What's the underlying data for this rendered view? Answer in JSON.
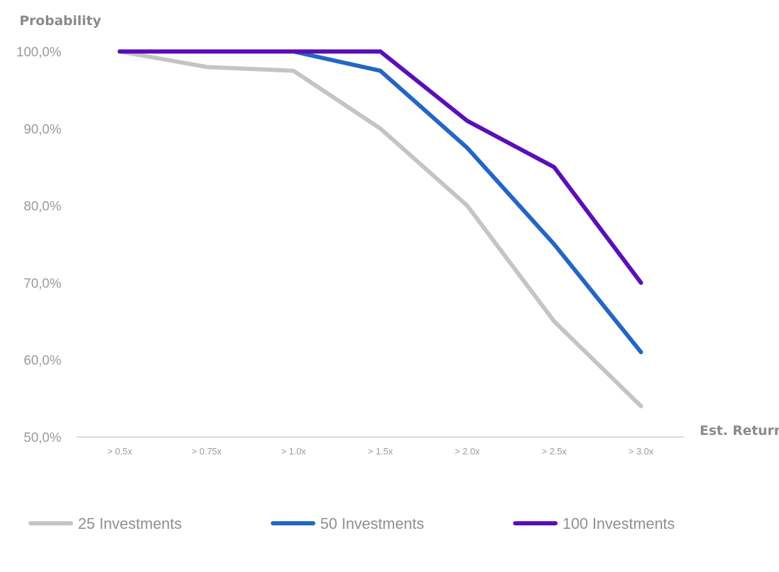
{
  "chart_data": {
    "type": "line",
    "ylabel": "Probability",
    "xlabel": "Est. Return",
    "categories": [
      "> 0.5x",
      "> 0.75x",
      "> 1.0x",
      "> 1.5x",
      "> 2.0x",
      "> 2.5x",
      "> 3.0x"
    ],
    "ylim": [
      50,
      100
    ],
    "yticks": [
      100,
      90,
      80,
      70,
      60,
      50
    ],
    "ytick_labels": [
      "100,0%",
      "90,0%",
      "80,0%",
      "70,0%",
      "60,0%",
      "50,0%"
    ],
    "grid": false,
    "legend_position": "bottom",
    "series": [
      {
        "name": "25 Investments",
        "color": "#c4c4c4",
        "values": [
          100,
          98,
          97.5,
          90,
          80,
          65,
          54
        ]
      },
      {
        "name": "50 Investments",
        "color": "#2466c4",
        "values": [
          100,
          100,
          100,
          97.5,
          87.5,
          75,
          61
        ]
      },
      {
        "name": "100 Investments",
        "color": "#5b0fb8",
        "values": [
          100,
          100,
          100,
          100,
          91,
          85,
          70
        ]
      }
    ]
  }
}
